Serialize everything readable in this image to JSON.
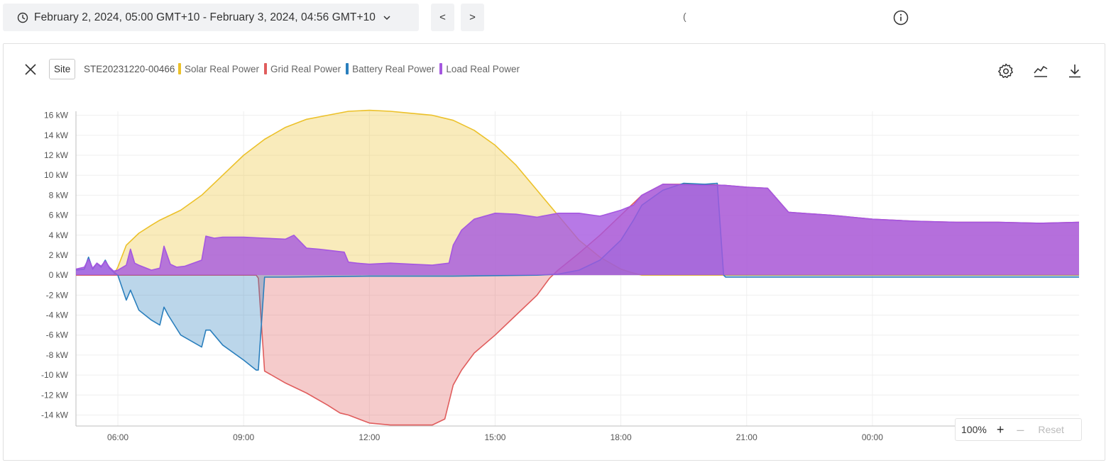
{
  "toolbar": {
    "date_range": "February 2, 2024, 05:00 GMT+10 - February 3, 2024, 04:56 GMT+10",
    "prev_label": "<",
    "next_label": ">",
    "stray_text": "("
  },
  "panel": {
    "site_chip": "Site",
    "site_id": "STE20231220-00466"
  },
  "zoom": {
    "percent": "100%",
    "plus": "+",
    "minus": "–",
    "reset": "Reset"
  },
  "colors": {
    "solar": "#ecc12a",
    "grid": "#e05d5d",
    "battery": "#2a7fbd",
    "load": "#a557e0"
  },
  "chart_data": {
    "type": "area",
    "series": [
      {
        "name": "Solar Real Power",
        "color": "#ecc12a",
        "x": [
          5,
          5.5,
          5.9,
          6,
          6.2,
          6.5,
          6.8,
          7,
          7.5,
          8,
          8.5,
          9,
          9.5,
          10,
          10.5,
          11,
          11.5,
          12,
          12.5,
          13,
          13.5,
          14,
          14.5,
          15,
          15.5,
          16,
          16.5,
          17,
          17.5,
          18,
          18.3,
          18.5,
          19,
          20,
          21,
          22,
          23,
          24,
          25,
          26,
          27,
          28,
          28.93
        ],
        "values": [
          0,
          0,
          0,
          0.8,
          3.0,
          4.2,
          5.0,
          5.5,
          6.5,
          8.0,
          10.0,
          12.0,
          13.6,
          14.8,
          15.6,
          16.0,
          16.4,
          16.5,
          16.4,
          16.2,
          16.0,
          15.5,
          14.5,
          13.0,
          11.0,
          8.5,
          6.0,
          3.5,
          1.8,
          0.6,
          0.2,
          0,
          0,
          0,
          0,
          0,
          0,
          0,
          0,
          0,
          0,
          0,
          0
        ]
      },
      {
        "name": "Grid Real Power",
        "color": "#e05d5d",
        "x": [
          5,
          6,
          7,
          8,
          9,
          9.3,
          9.35,
          9.5,
          10,
          10.5,
          11,
          11.3,
          11.5,
          12,
          12.5,
          13,
          13.5,
          13.8,
          14,
          14.2,
          14.5,
          15,
          15.5,
          16,
          16.3,
          16.5,
          17,
          17.5,
          18,
          18.5,
          19,
          20,
          20.4,
          20.45,
          21,
          21.5,
          22,
          23,
          24,
          25,
          26,
          27,
          28,
          28.93
        ],
        "values": [
          0,
          0,
          0,
          0,
          0,
          0,
          -0.3,
          -9.6,
          -10.8,
          -11.8,
          -13.0,
          -13.8,
          -14.0,
          -14.8,
          -15.0,
          -15.0,
          -15.0,
          -14.4,
          -11.0,
          -9.5,
          -7.8,
          -6.0,
          -4.0,
          -2.0,
          -0.3,
          0.5,
          2.2,
          4.0,
          6.0,
          8.0,
          9.1,
          9.1,
          9.0,
          9.0,
          8.8,
          8.7,
          6.3,
          6.0,
          5.6,
          5.4,
          5.3,
          5.3,
          5.2,
          5.3
        ]
      },
      {
        "name": "Battery Real Power",
        "color": "#2a7fbd",
        "x": [
          5,
          5.2,
          5.3,
          5.4,
          5.5,
          5.6,
          5.7,
          5.8,
          5.9,
          6,
          6.2,
          6.3,
          6.5,
          6.8,
          7,
          7.1,
          7.2,
          7.5,
          8,
          8.1,
          8.2,
          8.5,
          9,
          9.3,
          9.35,
          9.5,
          10,
          12,
          14,
          16,
          16.5,
          17,
          17.5,
          18,
          18.3,
          18.5,
          19,
          19.5,
          20,
          20.3,
          20.45,
          20.5,
          21,
          24,
          27,
          28.93
        ],
        "values": [
          0.5,
          0.6,
          1.8,
          0.6,
          1.2,
          0.8,
          1.5,
          0.7,
          0.3,
          0,
          -2.5,
          -1.5,
          -3.5,
          -4.5,
          -5.0,
          -3.2,
          -4.0,
          -6.0,
          -7.2,
          -5.5,
          -5.5,
          -7.0,
          -8.5,
          -9.5,
          -9.5,
          -0.2,
          -0.2,
          -0.1,
          -0.1,
          0,
          0.1,
          0.5,
          1.5,
          3.5,
          5.5,
          7.0,
          8.5,
          9.2,
          9.1,
          9.2,
          0,
          -0.2,
          -0.2,
          -0.2,
          -0.2,
          -0.2
        ]
      },
      {
        "name": "Load Real Power",
        "color": "#a557e0",
        "x": [
          5,
          5.2,
          5.3,
          5.4,
          5.5,
          5.6,
          5.7,
          5.8,
          5.9,
          6,
          6.2,
          6.3,
          6.4,
          6.5,
          6.8,
          7,
          7.1,
          7.25,
          7.4,
          7.6,
          8,
          8.1,
          8.3,
          8.5,
          9,
          9.5,
          10,
          10.2,
          10.5,
          10.8,
          11,
          11.4,
          11.5,
          11.7,
          12,
          12.5,
          13,
          13.5,
          13.9,
          14,
          14.2,
          14.5,
          15,
          15.5,
          16,
          16.5,
          17,
          17.5,
          18,
          18.3,
          18.5,
          19,
          20,
          20.4,
          20.45,
          21,
          21.5,
          22,
          23,
          24,
          25,
          26,
          27,
          28,
          28.93
        ],
        "values": [
          0.6,
          0.8,
          1.6,
          0.7,
          1.2,
          0.9,
          1.4,
          0.8,
          0.4,
          0.5,
          1.0,
          2.6,
          1.2,
          1.0,
          0.5,
          0.7,
          2.9,
          1.1,
          0.8,
          0.9,
          1.5,
          3.9,
          3.7,
          3.8,
          3.8,
          3.7,
          3.6,
          4.0,
          2.7,
          2.6,
          2.5,
          2.3,
          1.3,
          1.2,
          1.1,
          1.2,
          1.1,
          1.0,
          1.2,
          3.0,
          4.5,
          5.6,
          6.2,
          6.1,
          5.8,
          6.2,
          6.2,
          5.9,
          6.5,
          7.0,
          8.0,
          9.1,
          9.0,
          9.0,
          9.0,
          8.8,
          8.7,
          6.3,
          6.0,
          5.6,
          5.4,
          5.3,
          5.3,
          5.2,
          5.3
        ]
      }
    ],
    "x_ticks": [
      6,
      9,
      12,
      15,
      18,
      21,
      24
    ],
    "x_tick_labels": [
      "06:00",
      "09:00",
      "12:00",
      "15:00",
      "18:00",
      "21:00",
      "00:00"
    ],
    "y_ticks": [
      16,
      14,
      12,
      10,
      8,
      6,
      4,
      2,
      0,
      -2,
      -4,
      -6,
      -8,
      -10,
      -12,
      -14
    ],
    "y_tick_labels": [
      "16 kW",
      "14 kW",
      "12 kW",
      "10 kW",
      "8 kW",
      "6 kW",
      "4 kW",
      "2 kW",
      "0 kW",
      "-2 kW",
      "-4 kW",
      "-6 kW",
      "-8 kW",
      "-10 kW",
      "-12 kW",
      "-14 kW"
    ],
    "xlim": [
      5,
      28.93
    ],
    "ylim": [
      -15.1,
      16.4
    ],
    "grid": true,
    "legend_position": "top-left"
  }
}
